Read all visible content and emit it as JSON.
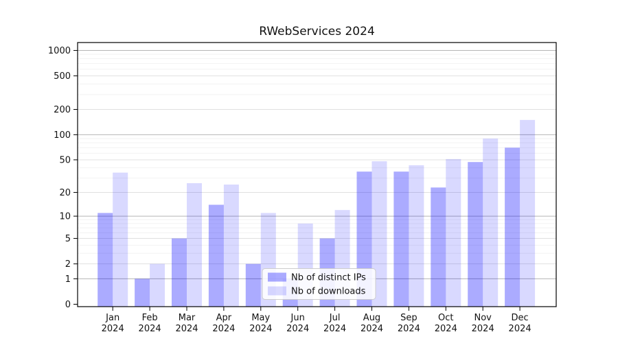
{
  "title": "RWebServices 2024",
  "chart_data": {
    "type": "bar",
    "title": "RWebServices 2024",
    "categories": [
      "Jan",
      "Feb",
      "Mar",
      "Apr",
      "May",
      "Jun",
      "Jul",
      "Aug",
      "Sep",
      "Oct",
      "Nov",
      "Dec"
    ],
    "year_label": "2024",
    "series": [
      {
        "key": "ips",
        "name": "Nb of distinct IPs",
        "color": "rgba(0,0,255,0.33)",
        "values": [
          11,
          1,
          5,
          14,
          2,
          1,
          5,
          36,
          36,
          23,
          47,
          70
        ]
      },
      {
        "key": "downloads",
        "name": "Nb of downloads",
        "color": "rgba(0,0,255,0.15)",
        "values": [
          35,
          2,
          26,
          25,
          11,
          8,
          12,
          48,
          43,
          51,
          90,
          150
        ]
      }
    ],
    "y_scale": "log1p",
    "y_ticks": [
      0,
      1,
      2,
      5,
      10,
      20,
      50,
      100,
      200,
      500,
      1000
    ],
    "y_minor_gridlines": [
      3,
      4,
      6,
      7,
      8,
      9,
      30,
      40,
      60,
      70,
      80,
      90,
      300,
      400,
      600,
      700,
      800,
      900
    ],
    "ylim": [
      0,
      1200
    ],
    "grid": true,
    "legend_position": "lower-center-left",
    "colors": {
      "spine": "#000000",
      "grid_decade": "#b4b4b4",
      "grid_labeled": "#e0e0e0",
      "grid_minor": "#f2f2f2",
      "legend_border": "#cccccc",
      "legend_bg": "rgba(255,255,255,0.85)"
    }
  }
}
